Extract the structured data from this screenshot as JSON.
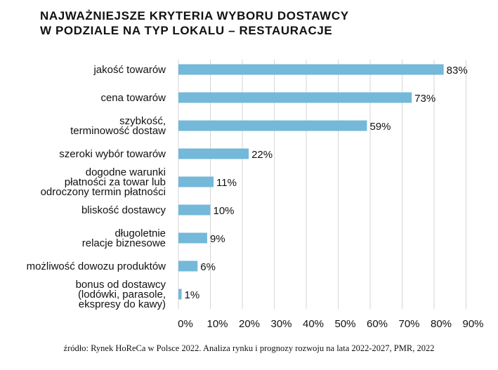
{
  "chart_data": {
    "type": "bar",
    "orientation": "horizontal",
    "title": [
      "NAJWAŻNIEJSZE KRYTERIA WYBORU DOSTAWCY",
      "W PODZIALE NA TYP LOKALU – RESTAURACJE"
    ],
    "categories": [
      [
        "jakość towarów"
      ],
      [
        "cena towarów"
      ],
      [
        "szybkość,",
        "terminowość dostaw"
      ],
      [
        "szeroki wybór towarów"
      ],
      [
        "dogodne warunki",
        "płatności za towar lub",
        "odroczony termin płatności"
      ],
      [
        "bliskość dostawcy"
      ],
      [
        "długoletnie",
        "relacje biznesowe"
      ],
      [
        "możliwość dowozu produktów"
      ],
      [
        "bonus od dostawcy",
        "(lodówki, parasole,",
        "ekspresy do kawy)"
      ]
    ],
    "values": [
      83,
      73,
      59,
      22,
      11,
      10,
      9,
      6,
      1
    ],
    "data_labels": [
      "83%",
      "73%",
      "59%",
      "22%",
      "11%",
      "10%",
      "9%",
      "6%",
      "1%"
    ],
    "xlim": [
      0,
      90
    ],
    "xticks": [
      "0%",
      "10%",
      "20%",
      "30%",
      "40%",
      "50%",
      "60%",
      "70%",
      "80%",
      "90%"
    ],
    "grid": true,
    "bar_color": "#74b8da",
    "source": "źródło: Rynek HoReCa w Polsce 2022. Analiza rynku i prognozy rozwoju na lata 2022-2027, PMR, 2022"
  }
}
